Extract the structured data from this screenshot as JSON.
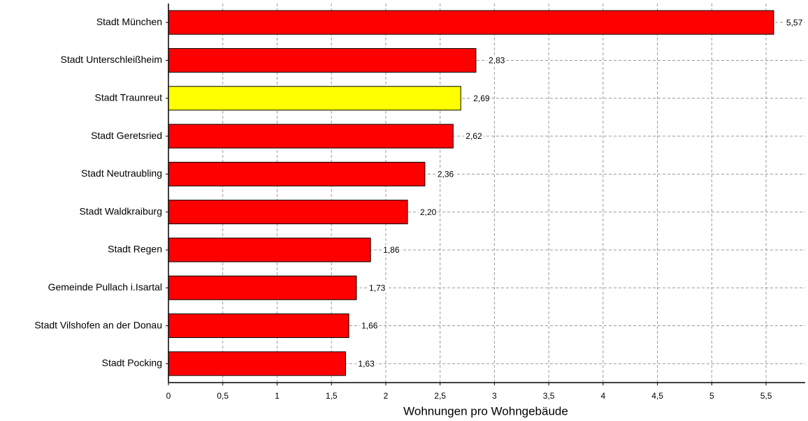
{
  "chart_data": {
    "type": "hbar",
    "x_label": "Wohnungen pro Wohngebäude",
    "categories": [
      "Stadt München",
      "Stadt Unterschleißheim",
      "Stadt Traunreut",
      "Stadt Geretsried",
      "Stadt Neutraubling",
      "Stadt Waldkraiburg",
      "Stadt Regen",
      "Gemeinde Pullach i.Isartal",
      "Stadt Vilshofen an der Donau",
      "Stadt Pocking"
    ],
    "values": [
      5.57,
      2.83,
      2.69,
      2.62,
      2.36,
      2.2,
      1.86,
      1.73,
      1.66,
      1.63
    ],
    "value_labels": [
      "5,57",
      "2,83",
      "2,69",
      "2,62",
      "2,36",
      "2,20",
      "1,86",
      "1,73",
      "1,66",
      "1,63"
    ],
    "colors": [
      "#ff0000",
      "#ff0000",
      "#ffff00",
      "#ff0000",
      "#ff0000",
      "#ff0000",
      "#ff0000",
      "#ff0000",
      "#ff0000",
      "#ff0000"
    ],
    "xlim": [
      0,
      5.86
    ],
    "xticks": [
      0,
      {
        "value": 0.5,
        "label": "0,5"
      },
      1,
      {
        "value": 1.5,
        "label": "1,5"
      },
      2,
      {
        "value": 2.5,
        "label": "2,5"
      },
      3,
      {
        "value": 3.5,
        "label": "3,5"
      },
      4,
      {
        "value": 4.5,
        "label": "4,5"
      },
      5,
      {
        "value": 5.5,
        "label": "5,5"
      }
    ],
    "grid": true
  }
}
